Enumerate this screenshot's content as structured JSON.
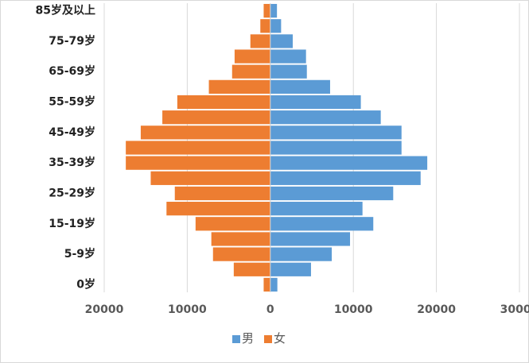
{
  "chart_data": {
    "type": "pyramid",
    "categories": [
      "0岁",
      null,
      "5-9岁",
      null,
      "15-19岁",
      null,
      "25-29岁",
      null,
      "35-39岁",
      null,
      "45-49岁",
      null,
      "55-59岁",
      null,
      "65-69岁",
      null,
      "75-79岁",
      null,
      "85岁及以上"
    ],
    "series": [
      {
        "name": "男",
        "color": "#5b9bd5",
        "values": [
          850,
          4900,
          7400,
          9600,
          12400,
          11100,
          14800,
          18100,
          18900,
          15800,
          15800,
          13300,
          10900,
          7200,
          4400,
          4300,
          2700,
          1300,
          800
        ]
      },
      {
        "name": "女",
        "color": "#ed7d31",
        "values": [
          -800,
          -4400,
          -6900,
          -7100,
          -9000,
          -12500,
          -11500,
          -14400,
          -17400,
          -17400,
          -15600,
          -13000,
          -11200,
          -7400,
          -4600,
          -4300,
          -2400,
          -1200,
          -800
        ]
      }
    ],
    "xlim": [
      -20000,
      30000
    ],
    "xticks": [
      {
        "value": -20000,
        "label": "20000"
      },
      {
        "value": -10000,
        "label": "10000"
      },
      0,
      10000,
      20000,
      30000
    ],
    "grid": true
  }
}
